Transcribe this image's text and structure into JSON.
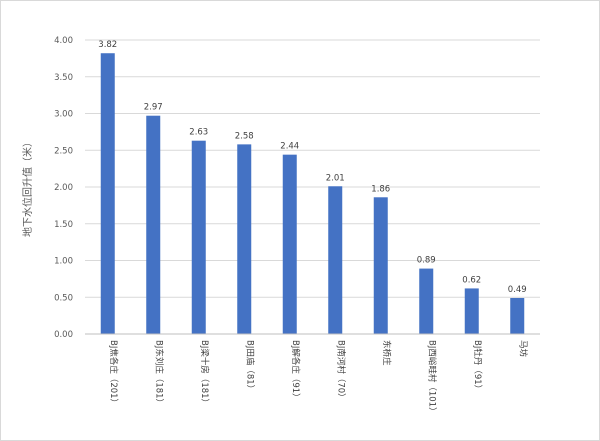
{
  "chart_data": {
    "type": "bar",
    "title": "",
    "xlabel": "",
    "ylabel": "地下水位回升值（米）",
    "ylim": [
      0,
      4
    ],
    "yticks": [
      "0.00",
      "0.50",
      "1.00",
      "1.50",
      "2.00",
      "2.50",
      "3.00",
      "3.50",
      "4.00"
    ],
    "grid": true,
    "legend": "none",
    "bar_color": "#4472c4",
    "categories": [
      "BJ焦各庄（201）",
      "BJ东刘庄（181）",
      "BJ梁十房（181）",
      "BJ田庙（81）",
      "BJ解各庄（91）",
      "BJ南河村（70）",
      "东桥庄",
      "BJ西峪畦村（101）",
      "BJ牡丹（91）",
      "马坊"
    ],
    "values": [
      3.82,
      2.97,
      2.63,
      2.58,
      2.44,
      2.01,
      1.86,
      0.89,
      0.62,
      0.49
    ],
    "value_labels": [
      "3.82",
      "2.97",
      "2.63",
      "2.58",
      "2.44",
      "2.01",
      "1.86",
      "0.89",
      "0.62",
      "0.49"
    ]
  }
}
